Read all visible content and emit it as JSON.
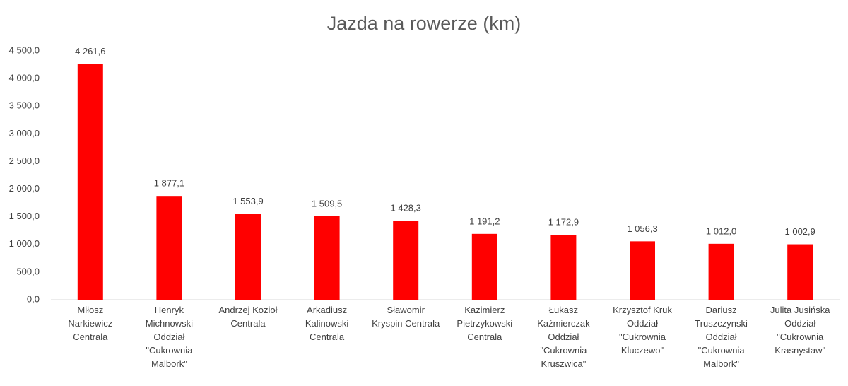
{
  "chart_data": {
    "type": "bar",
    "title": "Jazda na rowerze (km)",
    "categories": [
      [
        "Miłosz",
        "Narkiewicz",
        "Centrala"
      ],
      [
        "Henryk",
        "Michnowski",
        "Oddział",
        "\"Cukrownia",
        "Malbork\""
      ],
      [
        "Andrzej Kozioł",
        "Centrala"
      ],
      [
        "Arkadiusz",
        "Kalinowski",
        "Centrala"
      ],
      [
        "Sławomir",
        "Kryspin Centrala"
      ],
      [
        "Kazimierz",
        "Pietrzykowski",
        "Centrala"
      ],
      [
        "Łukasz",
        "Kaźmierczak",
        "Oddział",
        "\"Cukrownia",
        "Kruszwica\""
      ],
      [
        "Krzysztof Kruk",
        "Oddział",
        "\"Cukrownia",
        "Kluczewo\""
      ],
      [
        "Dariusz",
        "Truszczynski",
        "Oddział",
        "\"Cukrownia",
        "Malbork\""
      ],
      [
        "Julita Jusińska",
        "Oddział",
        "\"Cukrownia",
        "Krasnystaw\""
      ]
    ],
    "values": [
      4261.6,
      1877.1,
      1553.9,
      1509.5,
      1428.3,
      1191.2,
      1172.9,
      1056.3,
      1012.0,
      1002.9
    ],
    "value_labels": [
      "4 261,6",
      "1 877,1",
      "1 553,9",
      "1 509,5",
      "1 428,3",
      "1 191,2",
      "1 172,9",
      "1 056,3",
      "1 012,0",
      "1 002,9"
    ],
    "color": "#ff0000",
    "ylim": [
      0,
      4500
    ],
    "yticks": [
      {
        "value": 0,
        "label": "0,0"
      },
      {
        "value": 500,
        "label": "500,0"
      },
      {
        "value": 1000,
        "label": "1 000,0"
      },
      {
        "value": 1500,
        "label": "1 500,0"
      },
      {
        "value": 2000,
        "label": "2 000,0"
      },
      {
        "value": 2500,
        "label": "2 500,0"
      },
      {
        "value": 3000,
        "label": "3 000,0"
      },
      {
        "value": 3500,
        "label": "3 500,0"
      },
      {
        "value": 4000,
        "label": "4 000,0"
      },
      {
        "value": 4500,
        "label": "4 500,0"
      }
    ],
    "grid": false
  }
}
